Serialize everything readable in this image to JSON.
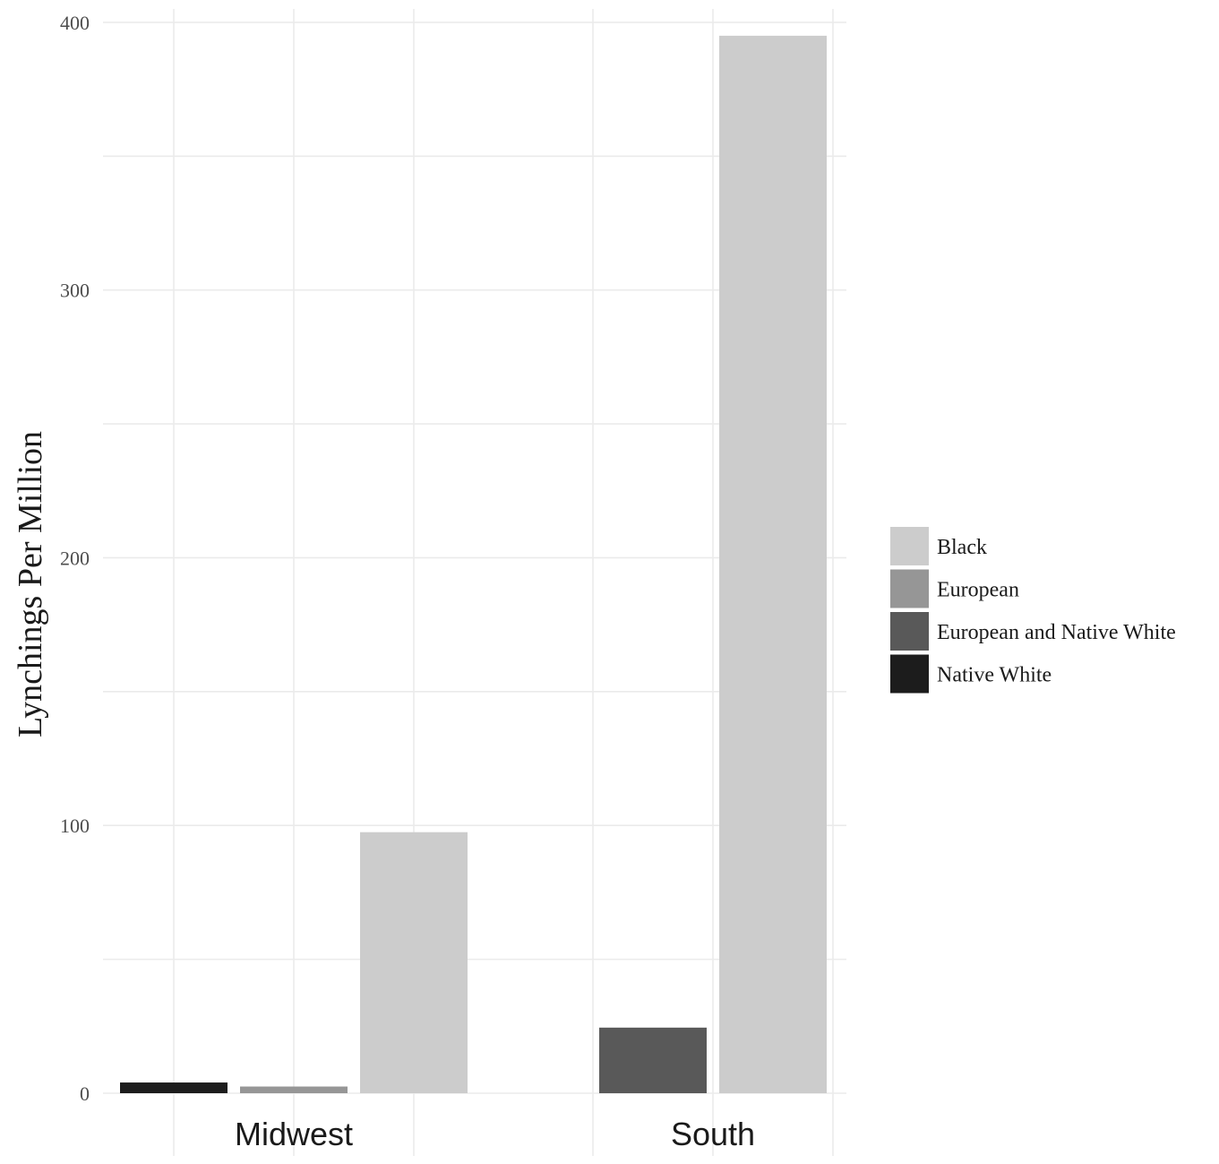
{
  "chart_data": {
    "type": "bar",
    "ylabel": "Lynchings Per Million",
    "xlabel": "",
    "ylim": [
      0,
      405
    ],
    "yticks": [
      0,
      100,
      200,
      300,
      400
    ],
    "categories": [
      "Midwest",
      "South"
    ],
    "series": [
      {
        "name": "Native White",
        "color": "#1c1c1c",
        "values": [
          4,
          null
        ]
      },
      {
        "name": "European",
        "color": "#969696",
        "values": [
          2.5,
          null
        ]
      },
      {
        "name": "European and Native White",
        "color": "#595959",
        "values": [
          null,
          24.5
        ]
      },
      {
        "name": "Black",
        "color": "#cccccc",
        "values": [
          97.5,
          395
        ]
      }
    ],
    "legend": {
      "position": "right",
      "order": [
        "Black",
        "European",
        "European and Native White",
        "Native White"
      ]
    },
    "grid": true
  }
}
